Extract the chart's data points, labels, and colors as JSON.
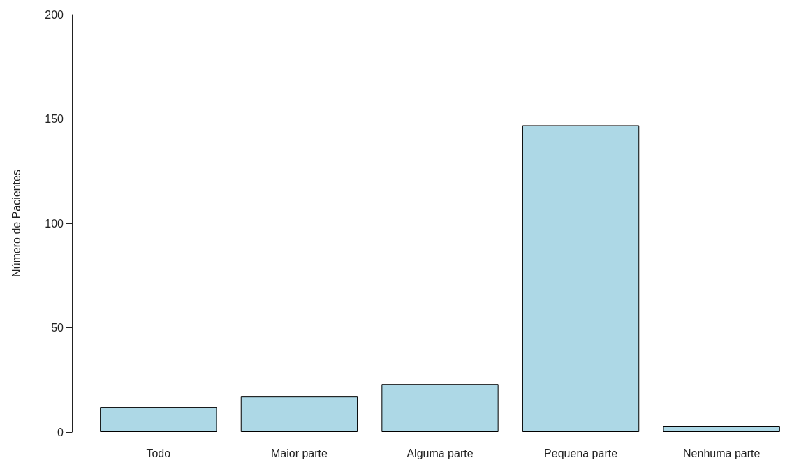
{
  "chart_data": {
    "type": "bar",
    "ylabel": "Número de Pacientes",
    "categories": [
      "Todo",
      "Maior parte",
      "Alguma parte",
      "Pequena parte",
      "Nenhuma parte"
    ],
    "values": [
      12,
      17,
      23,
      147,
      3
    ],
    "color": "#add8e6",
    "ylim": [
      0,
      200
    ],
    "yticks": [
      0,
      50,
      100,
      150,
      200
    ],
    "grid": false
  }
}
